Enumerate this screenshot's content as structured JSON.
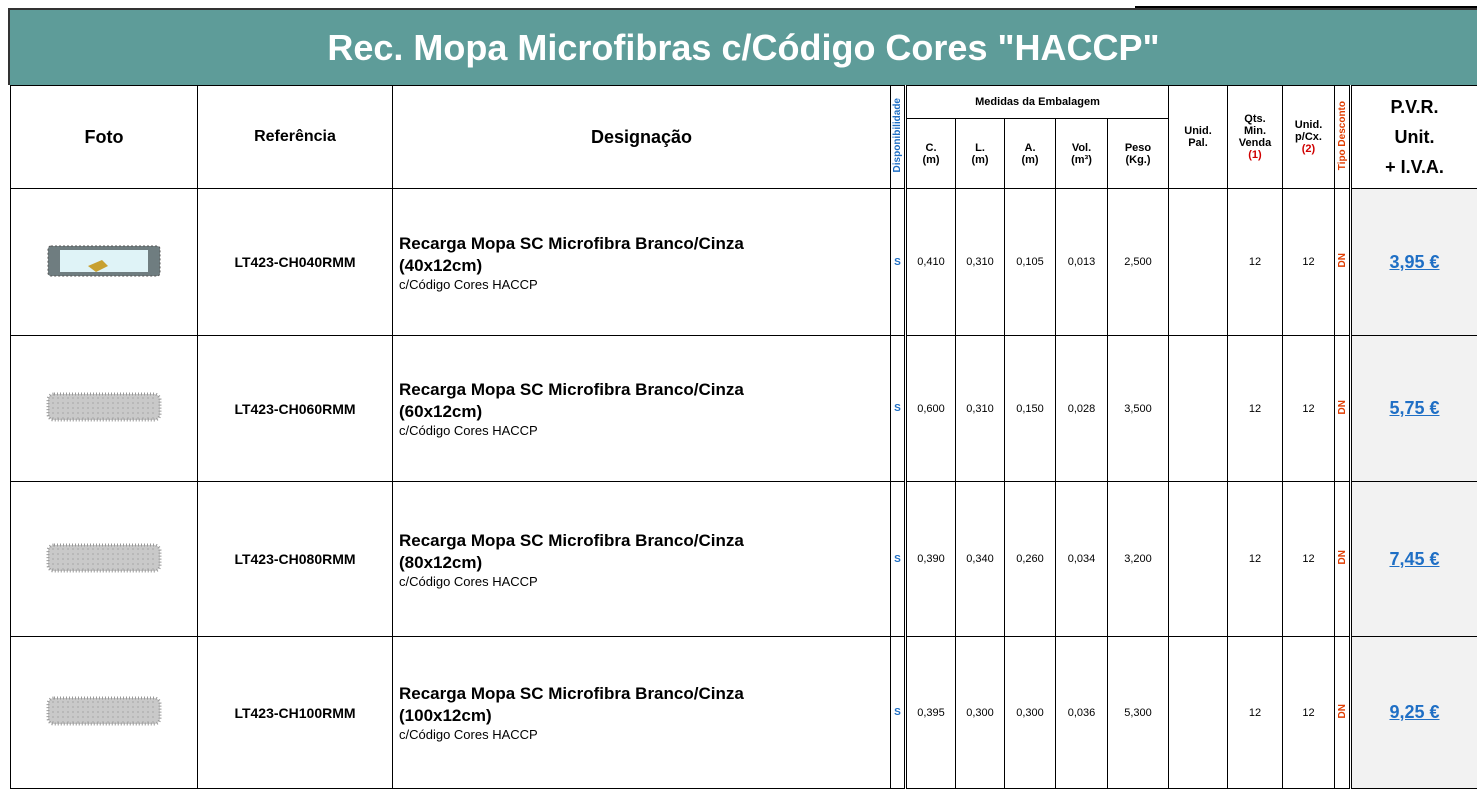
{
  "header": {
    "title": "Rec. Mopa Microfibras c/Código Cores \"HACCP\""
  },
  "columns": {
    "foto": "Foto",
    "referencia": "Referência",
    "designacao": "Designação",
    "disponibilidade": "Disponibilidade",
    "medidas": "Medidas da Embalagem",
    "c": [
      "C.",
      "(m)"
    ],
    "l": [
      "L.",
      "(m)"
    ],
    "a": [
      "A.",
      "(m)"
    ],
    "vol": [
      "Vol.",
      "(m³)"
    ],
    "peso": [
      "Peso",
      "(Kg.)"
    ],
    "pal": [
      "Unid.",
      "Pal."
    ],
    "qts": [
      "Qts.",
      "Min.",
      "Venda",
      "(1)"
    ],
    "cx": [
      "Unid.",
      "p/Cx.",
      "(2)"
    ],
    "tipo": "Tipo Desconto",
    "pvr": [
      "P.V.R.",
      "Unit.",
      "+ I.V.A."
    ]
  },
  "rows": [
    {
      "ref": "LT423-CH040RMM",
      "name": "Recarga Mopa SC Microfibra Branco/Cinza",
      "size": "(40x12cm)",
      "note": "c/Código Cores HACCP",
      "disp": "S",
      "c": "0,410",
      "l": "0,310",
      "a": "0,105",
      "vol": "0,013",
      "peso": "2,500",
      "qts": "12",
      "cx": "12",
      "tipo": "DN",
      "price": "3,95 €"
    },
    {
      "ref": "LT423-CH060RMM",
      "name": "Recarga Mopa SC Microfibra Branco/Cinza",
      "size": "(60x12cm)",
      "note": "c/Código Cores HACCP",
      "disp": "S",
      "c": "0,600",
      "l": "0,310",
      "a": "0,150",
      "vol": "0,028",
      "peso": "3,500",
      "qts": "12",
      "cx": "12",
      "tipo": "DN",
      "price": "5,75 €"
    },
    {
      "ref": "LT423-CH080RMM",
      "name": "Recarga Mopa SC Microfibra Branco/Cinza",
      "size": "(80x12cm)",
      "note": "c/Código Cores HACCP",
      "disp": "S",
      "c": "0,390",
      "l": "0,340",
      "a": "0,260",
      "vol": "0,034",
      "peso": "3,200",
      "qts": "12",
      "cx": "12",
      "tipo": "DN",
      "price": "7,45 €"
    },
    {
      "ref": "LT423-CH100RMM",
      "name": "Recarga Mopa SC Microfibra Branco/Cinza",
      "size": "(100x12cm)",
      "note": "c/Código Cores HACCP",
      "disp": "S",
      "c": "0,395",
      "l": "0,300",
      "a": "0,300",
      "vol": "0,036",
      "peso": "5,300",
      "qts": "12",
      "cx": "12",
      "tipo": "DN",
      "price": "9,25 €"
    }
  ]
}
